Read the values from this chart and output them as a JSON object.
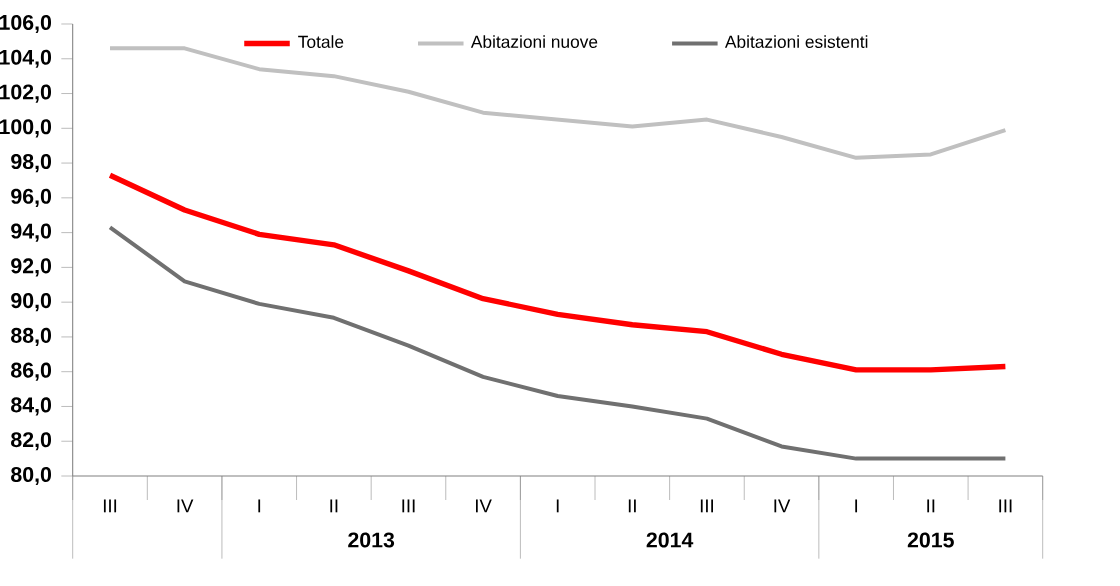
{
  "chart_data": {
    "type": "line",
    "categories": [
      "III",
      "IV",
      "I",
      "II",
      "III",
      "IV",
      "I",
      "II",
      "III",
      "IV",
      "I",
      "II",
      "III"
    ],
    "series": [
      {
        "name": "Totale",
        "color": "#ff0000",
        "values": [
          97.3,
          95.3,
          93.9,
          93.3,
          91.8,
          90.2,
          89.3,
          88.7,
          88.3,
          87.0,
          86.1,
          86.1,
          86.3
        ]
      },
      {
        "name": "Abitazioni nuove",
        "color": "#c0c0c0",
        "values": [
          104.6,
          104.6,
          103.4,
          103.0,
          102.1,
          100.9,
          100.5,
          100.1,
          100.5,
          99.5,
          98.3,
          98.5,
          99.9
        ]
      },
      {
        "name": "Abitazioni esistenti",
        "color": "#707070",
        "values": [
          94.3,
          91.2,
          89.9,
          89.1,
          87.5,
          85.7,
          84.6,
          84.0,
          83.3,
          81.7,
          81.0,
          81.0,
          81.0
        ]
      }
    ],
    "ylim": [
      80,
      106
    ],
    "yticks": [
      {
        "value": 80,
        "label": "80,0"
      },
      {
        "value": 82,
        "label": "82,0"
      },
      {
        "value": 84,
        "label": "84,0"
      },
      {
        "value": 86,
        "label": "86,0"
      },
      {
        "value": 88,
        "label": "88,0"
      },
      {
        "value": 90,
        "label": "90,0"
      },
      {
        "value": 92,
        "label": "92,0"
      },
      {
        "value": 94,
        "label": "94,0"
      },
      {
        "value": 96,
        "label": "96,0"
      },
      {
        "value": 98,
        "label": "98,0"
      },
      {
        "value": 100,
        "label": "100,0"
      },
      {
        "value": 102,
        "label": "102,0"
      },
      {
        "value": 104,
        "label": "104,0"
      },
      {
        "value": 106,
        "label": "106,0"
      }
    ],
    "annotations": [
      "2013",
      "2014",
      "2015"
    ],
    "legend": "top",
    "grid": false,
    "marker": "none",
    "line_style": "solid"
  }
}
